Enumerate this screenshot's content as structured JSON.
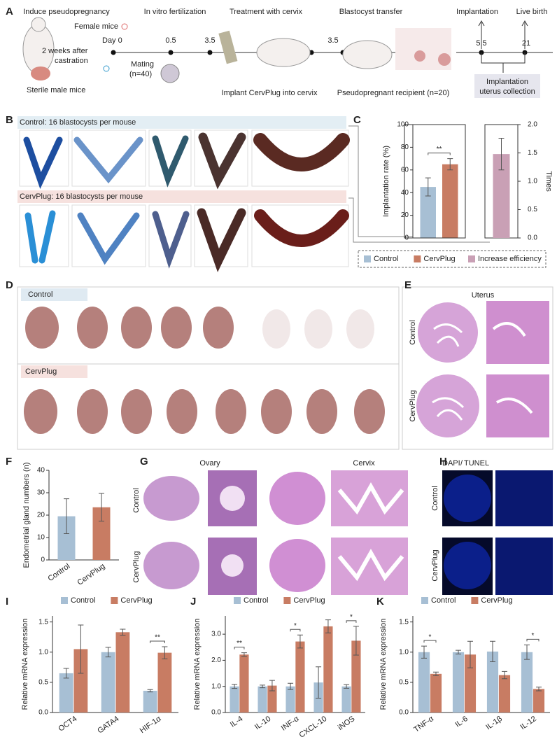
{
  "panel_labels": [
    "A",
    "B",
    "C",
    "D",
    "E",
    "F",
    "G",
    "H",
    "I",
    "J",
    "K"
  ],
  "panel_a": {
    "steps": [
      "Induce pseudopregnancy",
      "In vitro fertilization",
      "Treatment with cervix",
      "Blastocyst transfer",
      "Implantation",
      "Live birth"
    ],
    "female": "Female mice",
    "day0": "Day 0",
    "castration": [
      "2 weeks after",
      "castration"
    ],
    "male": "Sterile male mice",
    "mating": [
      "Mating",
      "(n=40)"
    ],
    "days": [
      "0.5",
      "3.5",
      "3.5",
      "5.5",
      "21"
    ],
    "implant": "Implant CervPlug into cervix",
    "recipient": "Pseudopregnant recipient (n=20)",
    "collection": [
      "Implantation",
      "uterus collection"
    ]
  },
  "panel_b": {
    "control": "Control: 16 blastocysts per mouse",
    "cervplug": "CervPlug: 16 blastocysts per mouse"
  },
  "panel_d": {
    "control": "Control",
    "cervplug": "CervPlug"
  },
  "panel_e": {
    "title": "Uterus",
    "rows": [
      "Control",
      "CervPlug"
    ]
  },
  "panel_g": {
    "columns": [
      "Ovary",
      "Cervix"
    ],
    "rows": [
      "Control",
      "CervPlug"
    ]
  },
  "panel_h": {
    "stain": [
      "DAPI",
      "/",
      "TUNEL"
    ],
    "rows": [
      "Control",
      "CervPlug"
    ]
  },
  "chart_data": [
    {
      "type": "bar",
      "ylabel": "Implantation rate (%)",
      "y2label": "Times",
      "categories": [
        null
      ],
      "ylim": [
        0,
        100
      ],
      "yticks": [
        0,
        20,
        40,
        60,
        80,
        100
      ],
      "y2lim": [
        0,
        2
      ],
      "y2ticks": [
        {
          "value": 0,
          "label": "0.0"
        },
        {
          "value": 0.5,
          "label": "0.5"
        },
        {
          "value": 1,
          "label": "1.0"
        },
        {
          "value": 1.5,
          "label": "1.5"
        },
        {
          "value": 2,
          "label": "2.0"
        }
      ],
      "legend": "bottom",
      "significance": [
        "**"
      ],
      "series": [
        {
          "name": "Control",
          "color": "#a7bfd4",
          "values": [
            45
          ],
          "errors": [
            8
          ]
        },
        {
          "name": "CervPlug",
          "color": "#c87c63",
          "values": [
            65
          ],
          "errors": [
            5
          ]
        },
        {
          "name": "Increase efficiency",
          "color": "#c9a0b5",
          "axis": "y2",
          "values": [
            1.48
          ],
          "errors": [
            0.28
          ]
        }
      ]
    },
    {
      "type": "bar",
      "ylabel": "Endometrial gland numbers (n)",
      "categories": [
        "Control",
        "CervPlug"
      ],
      "values": [
        19.5,
        23.5
      ],
      "errors": [
        7.8,
        6.2
      ],
      "colors": [
        "#a7bfd4",
        "#c87c63"
      ],
      "ylim": [
        0,
        40
      ],
      "yticks": [
        0,
        10,
        20,
        30,
        40
      ]
    },
    {
      "type": "bar",
      "ylabel": "Relative mRNA expression",
      "categories": [
        "OCT4",
        "GATA4",
        "HIF-1α"
      ],
      "ylim": [
        0,
        1.6
      ],
      "yticks": [
        {
          "value": 0,
          "label": "0.0"
        },
        {
          "value": 0.5,
          "label": "0.5"
        },
        {
          "value": 1,
          "label": "1.0"
        },
        {
          "value": 1.5,
          "label": "1.5"
        }
      ],
      "legend": "top",
      "significance": [
        null,
        null,
        "**"
      ],
      "series": [
        {
          "name": "Control",
          "color": "#a7bfd4",
          "values": [
            0.65,
            1.0,
            0.36
          ],
          "errors": [
            0.08,
            0.08,
            0.02
          ]
        },
        {
          "name": "CervPlug",
          "color": "#c87c63",
          "values": [
            1.05,
            1.33,
            0.99
          ],
          "errors": [
            0.4,
            0.05,
            0.1
          ]
        }
      ]
    },
    {
      "type": "bar",
      "ylabel": "Relative mRNA expression",
      "categories": [
        "IL-4",
        "IL-10",
        "INF-α",
        "CXCL-10",
        "iNOS"
      ],
      "ylim": [
        0,
        3.7
      ],
      "yticks": [
        {
          "value": 0,
          "label": "0.0"
        },
        {
          "value": 1,
          "label": "1.0"
        },
        {
          "value": 2,
          "label": "2.0"
        },
        {
          "value": 3,
          "label": "3.0"
        }
      ],
      "legend": "top",
      "significance": [
        "**",
        null,
        "*",
        null,
        "*"
      ],
      "series": [
        {
          "name": "Control",
          "color": "#a7bfd4",
          "values": [
            1.0,
            1.0,
            1.0,
            1.15,
            1.0
          ],
          "errors": [
            0.08,
            0.05,
            0.12,
            0.6,
            0.07
          ]
        },
        {
          "name": "CervPlug",
          "color": "#c87c63",
          "values": [
            2.22,
            1.03,
            2.72,
            3.3,
            2.75
          ],
          "errors": [
            0.07,
            0.2,
            0.25,
            0.25,
            0.55
          ]
        }
      ]
    },
    {
      "type": "bar",
      "ylabel": "Relative mRNA expression",
      "categories": [
        "TNF-α",
        "IL-6",
        "IL-1β",
        "IL-12"
      ],
      "ylim": [
        0,
        1.6
      ],
      "yticks": [
        {
          "value": 0,
          "label": "0.0"
        },
        {
          "value": 0.5,
          "label": "0.5"
        },
        {
          "value": 1,
          "label": "1.0"
        },
        {
          "value": 1.5,
          "label": "1.5"
        }
      ],
      "legend": "top",
      "significance": [
        "*",
        null,
        null,
        "*"
      ],
      "series": [
        {
          "name": "Control",
          "color": "#a7bfd4",
          "values": [
            1.0,
            1.0,
            1.01,
            1.0
          ],
          "errors": [
            0.1,
            0.03,
            0.17,
            0.12
          ]
        },
        {
          "name": "CervPlug",
          "color": "#c87c63",
          "values": [
            0.64,
            0.96,
            0.62,
            0.39
          ],
          "errors": [
            0.03,
            0.22,
            0.06,
            0.03
          ]
        }
      ]
    }
  ]
}
